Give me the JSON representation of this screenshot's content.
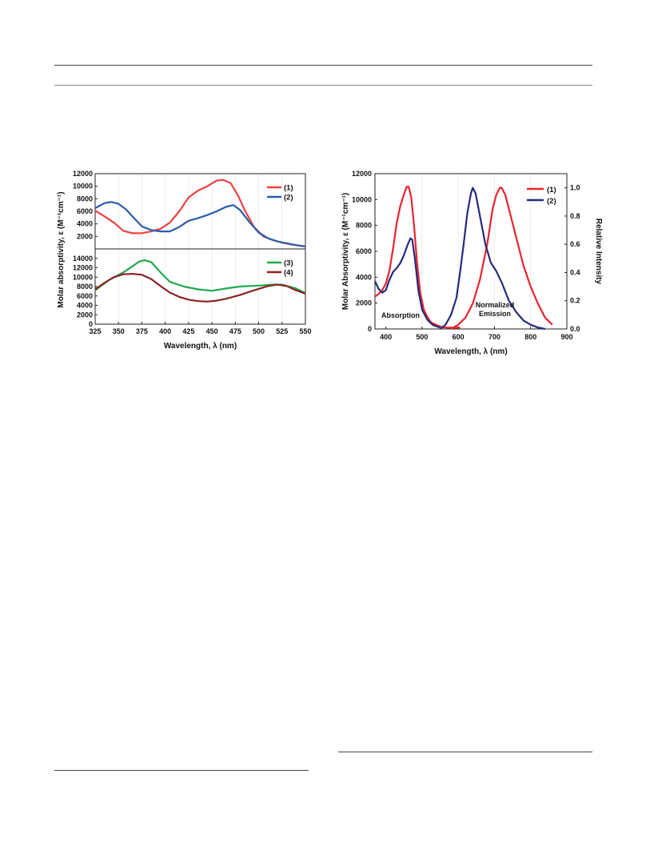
{
  "chart_data": [
    {
      "type": "line",
      "panel": "left-top",
      "xlabel": "",
      "ylabel": "Molar absorptivity, ε (M⁻¹cm⁻¹)",
      "xlim": [
        325,
        550
      ],
      "ylim": [
        0,
        12000
      ],
      "yticks": [
        "0",
        "2000",
        "4000",
        "6000",
        "8000",
        "10000",
        "12000"
      ],
      "xticks": [],
      "legend_position": "top-right",
      "series": [
        {
          "name": "(1)",
          "color": "#ef4040",
          "x": [
            325,
            335,
            345,
            355,
            365,
            375,
            385,
            395,
            405,
            415,
            425,
            435,
            445,
            455,
            462,
            470,
            478,
            485,
            495,
            505,
            515,
            525,
            535,
            550
          ],
          "y": [
            6100,
            5200,
            4200,
            2900,
            2500,
            2500,
            2800,
            3200,
            4200,
            6000,
            8200,
            9300,
            10000,
            10900,
            11000,
            10500,
            8500,
            6200,
            3500,
            2000,
            1400,
            1000,
            700,
            400
          ]
        },
        {
          "name": "(2)",
          "color": "#2a5cab",
          "x": [
            325,
            335,
            342,
            350,
            358,
            366,
            375,
            385,
            395,
            405,
            415,
            425,
            435,
            445,
            455,
            465,
            473,
            480,
            490,
            500,
            510,
            520,
            530,
            540,
            550
          ],
          "y": [
            6500,
            7300,
            7500,
            7200,
            6300,
            5000,
            3600,
            3000,
            2800,
            2800,
            3500,
            4500,
            4900,
            5400,
            6000,
            6700,
            7000,
            6200,
            4300,
            2600,
            1700,
            1200,
            900,
            600,
            400
          ]
        }
      ]
    },
    {
      "type": "line",
      "panel": "left-bottom",
      "xlabel": "Wavelength, λ (nm)",
      "ylabel": "",
      "xlim": [
        325,
        550
      ],
      "ylim": [
        0,
        16000
      ],
      "yticks": [
        "0",
        "2000",
        "4000",
        "6000",
        "8000",
        "10000",
        "12000",
        "14000"
      ],
      "xticks": [
        "325",
        "350",
        "375",
        "400",
        "425",
        "450",
        "475",
        "500",
        "525",
        "550"
      ],
      "legend_position": "top-right",
      "series": [
        {
          "name": "(3)",
          "color": "#22a84f",
          "x": [
            325,
            340,
            355,
            365,
            372,
            378,
            385,
            395,
            405,
            420,
            435,
            450,
            465,
            480,
            500,
            515,
            525,
            540,
            550
          ],
          "y": [
            7200,
            9400,
            11000,
            12300,
            13300,
            13600,
            13200,
            11000,
            9000,
            8000,
            7400,
            7100,
            7600,
            8000,
            8200,
            8400,
            8400,
            7600,
            6600
          ]
        },
        {
          "name": "(4)",
          "color": "#8b2323",
          "x": [
            325,
            335,
            345,
            355,
            365,
            375,
            385,
            395,
            405,
            415,
            425,
            435,
            445,
            455,
            465,
            480,
            495,
            510,
            520,
            530,
            540,
            550
          ],
          "y": [
            7400,
            8800,
            10000,
            10600,
            10700,
            10500,
            9600,
            8100,
            6700,
            5800,
            5200,
            4900,
            4800,
            5000,
            5400,
            6200,
            7200,
            8100,
            8400,
            8100,
            7200,
            6500
          ]
        }
      ]
    },
    {
      "type": "line",
      "panel": "right",
      "xlabel": "Wavelength, λ (nm)",
      "ylabel": "Molar Absorptivity, ε (M⁻¹cm⁻¹)",
      "y2label": "Relative Intensity",
      "xlim": [
        370,
        900
      ],
      "ylim": [
        0,
        12000
      ],
      "y2lim": [
        0,
        1.1
      ],
      "xticks": [
        "400",
        "500",
        "600",
        "700",
        "800",
        "900"
      ],
      "yticks": [
        "0",
        "2000",
        "4000",
        "6000",
        "8000",
        "10000",
        "12000"
      ],
      "y2ticks": [
        "0.0",
        "0.2",
        "0.4",
        "0.6",
        "0.8",
        "1.0"
      ],
      "legend_position": "top-right",
      "annotations": [
        "Absorption",
        "Normalized",
        "Emission"
      ],
      "series": [
        {
          "name": "(1)",
          "color": "#e8242c",
          "role": "absorption",
          "x": [
            370,
            380,
            390,
            400,
            410,
            420,
            430,
            440,
            450,
            458,
            463,
            470,
            478,
            486,
            495,
            505,
            515,
            525,
            540,
            555,
            570,
            590,
            605
          ],
          "y": [
            2500,
            2700,
            3000,
            3500,
            4500,
            6200,
            8200,
            9500,
            10400,
            11000,
            11000,
            10200,
            8000,
            5200,
            2800,
            1500,
            900,
            500,
            300,
            150,
            100,
            100,
            100
          ]
        },
        {
          "name": "(2)",
          "color": "#262a7c",
          "role": "absorption",
          "x": [
            370,
            380,
            390,
            400,
            410,
            420,
            430,
            440,
            450,
            460,
            468,
            473,
            480,
            490,
            500,
            515,
            530,
            550
          ],
          "y": [
            3700,
            3100,
            2800,
            3000,
            3800,
            4400,
            4700,
            5100,
            5700,
            6500,
            7000,
            6900,
            5500,
            3000,
            1500,
            700,
            300,
            100
          ]
        },
        {
          "name": "(1)",
          "color": "#e8242c",
          "role": "emission",
          "x": [
            580,
            600,
            620,
            640,
            660,
            680,
            695,
            705,
            715,
            720,
            730,
            745,
            760,
            780,
            800,
            820,
            840,
            860
          ],
          "y": [
            0.0,
            0.03,
            0.08,
            0.18,
            0.35,
            0.6,
            0.85,
            0.95,
            1.0,
            1.0,
            0.95,
            0.8,
            0.65,
            0.45,
            0.3,
            0.18,
            0.08,
            0.03
          ]
        },
        {
          "name": "(2)",
          "color": "#262a7c",
          "role": "emission",
          "x": [
            550,
            565,
            580,
            595,
            605,
            615,
            625,
            635,
            640,
            648,
            660,
            675,
            690,
            705,
            720,
            740,
            760,
            780,
            800,
            820,
            840
          ],
          "y": [
            0.0,
            0.03,
            0.1,
            0.22,
            0.4,
            0.6,
            0.82,
            0.96,
            1.0,
            0.96,
            0.8,
            0.6,
            0.47,
            0.41,
            0.33,
            0.2,
            0.12,
            0.06,
            0.03,
            0.01,
            0.0
          ]
        }
      ]
    }
  ]
}
